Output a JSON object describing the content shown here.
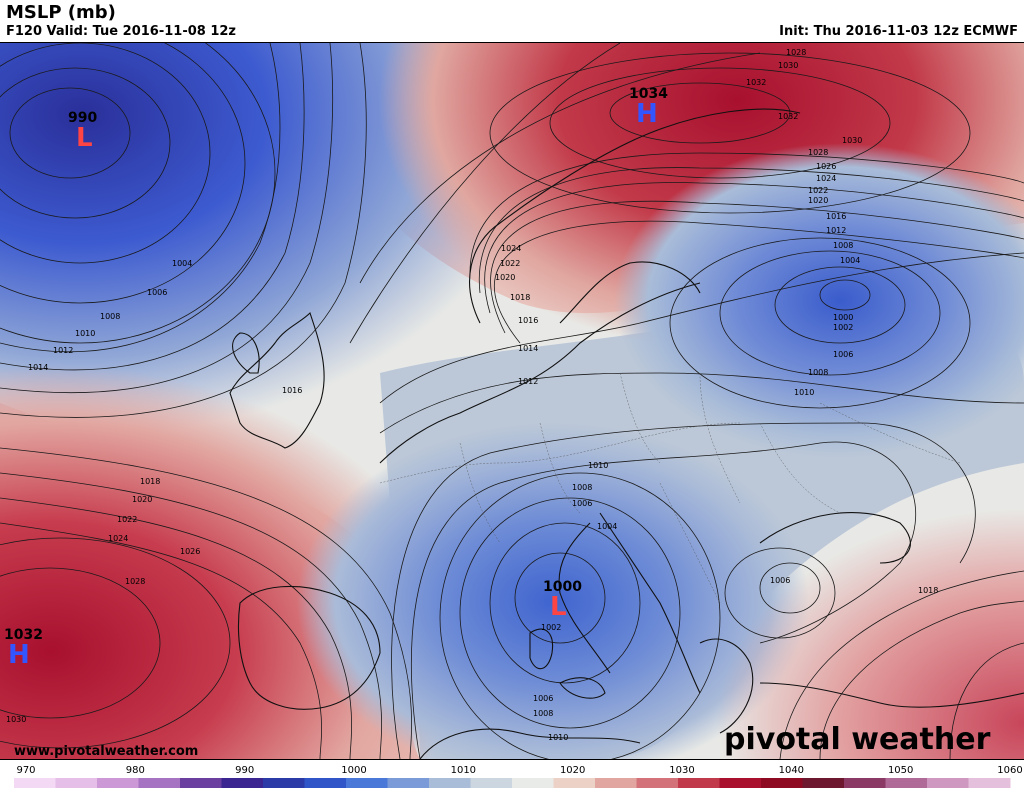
{
  "header": {
    "title": "MSLP (mb)",
    "valid": "F120 Valid: Tue 2016-11-08 12z",
    "init": "Init: Thu 2016-11-03 12z ECMWF"
  },
  "map": {
    "pressure_centers": [
      {
        "type": "L",
        "value": "990",
        "color": "#ff4444"
      },
      {
        "type": "H",
        "value": "1034",
        "color": "#3355ff"
      },
      {
        "type": "H",
        "value": "1032",
        "color": "#3355ff"
      },
      {
        "type": "L",
        "value": "1000",
        "color": "#ff4444"
      }
    ],
    "isobar_labels": [
      "1004",
      "1006",
      "1008",
      "1010",
      "1012",
      "1014",
      "1016",
      "1018",
      "1020",
      "1022",
      "1024",
      "1026",
      "1028",
      "1030",
      "1032",
      "1034",
      "1002",
      "1000"
    ],
    "credit": "www.pivotalweather.com",
    "brand": "pivotal weather"
  },
  "colorbar": {
    "ticks": [
      "970",
      "980",
      "990",
      "1000",
      "1010",
      "1020",
      "1030",
      "1040",
      "1050",
      "1060"
    ],
    "colors": [
      "#f3d9f3",
      "#e6bfe8",
      "#cc99d6",
      "#a673c2",
      "#6b3fa0",
      "#3b2590",
      "#2c3aa8",
      "#2f55c8",
      "#4a78d8",
      "#7a9ad8",
      "#a9bcd8",
      "#ccd6e0",
      "#e8ebe8",
      "#ecd2c6",
      "#e2a6a0",
      "#d4727a",
      "#c03a4c",
      "#a8102e",
      "#8e0a22",
      "#6e1830",
      "#8a3a64",
      "#b06a98",
      "#cf98c0",
      "#e4c0dc"
    ]
  }
}
